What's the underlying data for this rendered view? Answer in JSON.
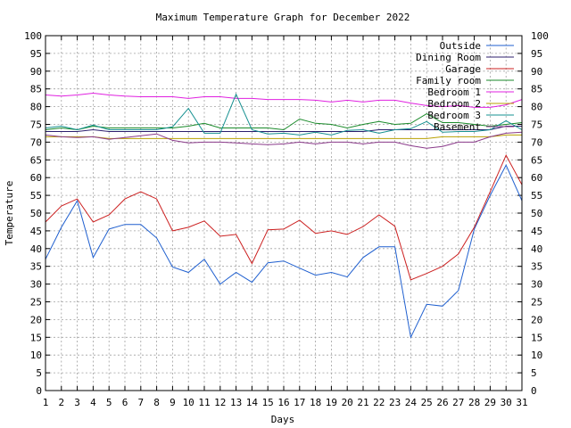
{
  "chart_data": {
    "type": "line",
    "title": "Maximum Temperature Graph for December 2022",
    "xlabel": "Days",
    "ylabel": "Temperature",
    "xlim": [
      1,
      31
    ],
    "ylim": [
      0,
      100
    ],
    "ytick_step": 5,
    "grid": true,
    "legend_position": "top-right",
    "x": [
      1,
      2,
      3,
      4,
      5,
      6,
      7,
      8,
      9,
      10,
      11,
      12,
      13,
      14,
      15,
      16,
      17,
      18,
      19,
      20,
      21,
      22,
      23,
      24,
      25,
      26,
      27,
      28,
      29,
      30,
      31
    ],
    "series": [
      {
        "name": "Outside",
        "color": "#1f5fcf",
        "values": [
          37,
          46,
          53.5,
          37.5,
          45.5,
          46.8,
          46.8,
          43,
          34.8,
          33.3,
          37,
          30,
          33.3,
          30.5,
          36,
          36.5,
          34.5,
          32.5,
          33.3,
          32,
          37.5,
          40.5,
          40.5,
          15,
          24.3,
          23.8,
          28.2,
          45.5,
          55,
          63.5,
          53.5
        ]
      },
      {
        "name": "Dining Room",
        "color": "#2c1f6e",
        "values": [
          73,
          73,
          73,
          73.5,
          73,
          73,
          73,
          73,
          73,
          73,
          73,
          73,
          73,
          73,
          73,
          73,
          73,
          73,
          73,
          73,
          73,
          73.5,
          73.5,
          73.5,
          73.5,
          73.5,
          73.5,
          73.5,
          73.5,
          74.5,
          74.5
        ]
      },
      {
        "name": "Garage",
        "color": "#cc2020",
        "values": [
          47.5,
          52,
          54,
          47.5,
          49.5,
          54,
          56,
          54,
          45,
          46,
          47.8,
          43.5,
          44,
          35.8,
          45.3,
          45.5,
          48,
          44.3,
          45,
          44,
          46.2,
          49.5,
          46.3,
          31.2,
          33,
          35,
          38.5,
          46,
          56,
          66.3,
          58
        ]
      },
      {
        "name": "Family room",
        "color": "#1a8a2a",
        "values": [
          73.5,
          74,
          73.5,
          74.5,
          74,
          74,
          74,
          74,
          74,
          74.5,
          75.3,
          74,
          74,
          74,
          74,
          73.5,
          76.5,
          75.3,
          75,
          74,
          75,
          75.8,
          75,
          75.3,
          78,
          75.5,
          75.5,
          75,
          74.5,
          75,
          75.5
        ]
      },
      {
        "name": "Bedroom 1",
        "color": "#e020e0",
        "values": [
          83.3,
          83,
          83.3,
          83.8,
          83.3,
          83,
          82.8,
          82.8,
          82.8,
          82.3,
          82.8,
          82.8,
          82.3,
          82.3,
          82,
          82,
          82,
          81.8,
          81.3,
          81.8,
          81.3,
          81.8,
          81.8,
          81,
          80.3,
          80,
          80.3,
          79.8,
          79.8,
          80.5,
          82
        ]
      },
      {
        "name": "Bedroom 2",
        "color": "#b8a000",
        "values": [
          71.5,
          71.5,
          71.5,
          71.5,
          71,
          71,
          71,
          71,
          71,
          71,
          71,
          71,
          71,
          71,
          71,
          71,
          71,
          71,
          71,
          71,
          71,
          71,
          71,
          71,
          71,
          71.5,
          71.5,
          71.5,
          71.5,
          72,
          72
        ]
      },
      {
        "name": "Bedroom 3",
        "color": "#159090",
        "values": [
          74,
          74.5,
          73.5,
          74.8,
          73.5,
          73.5,
          73.5,
          73.5,
          74.3,
          79.5,
          72.5,
          72.5,
          83.5,
          73.5,
          72.3,
          72.5,
          72,
          72.8,
          72,
          73.3,
          73.5,
          72.5,
          73.5,
          73.8,
          75.8,
          72.8,
          73,
          73,
          73.5,
          76,
          73.5
        ]
      },
      {
        "name": "Basement",
        "color": "#8a3a8a",
        "values": [
          72,
          71.5,
          71.3,
          71.5,
          70.8,
          71.3,
          71.8,
          72.3,
          70.5,
          69.8,
          70,
          70,
          69.8,
          69.5,
          69.3,
          69.5,
          70,
          69.5,
          70,
          70,
          69.5,
          70,
          70,
          69,
          68.3,
          68.8,
          70,
          70,
          71.5,
          72.5,
          72.8
        ]
      }
    ]
  }
}
